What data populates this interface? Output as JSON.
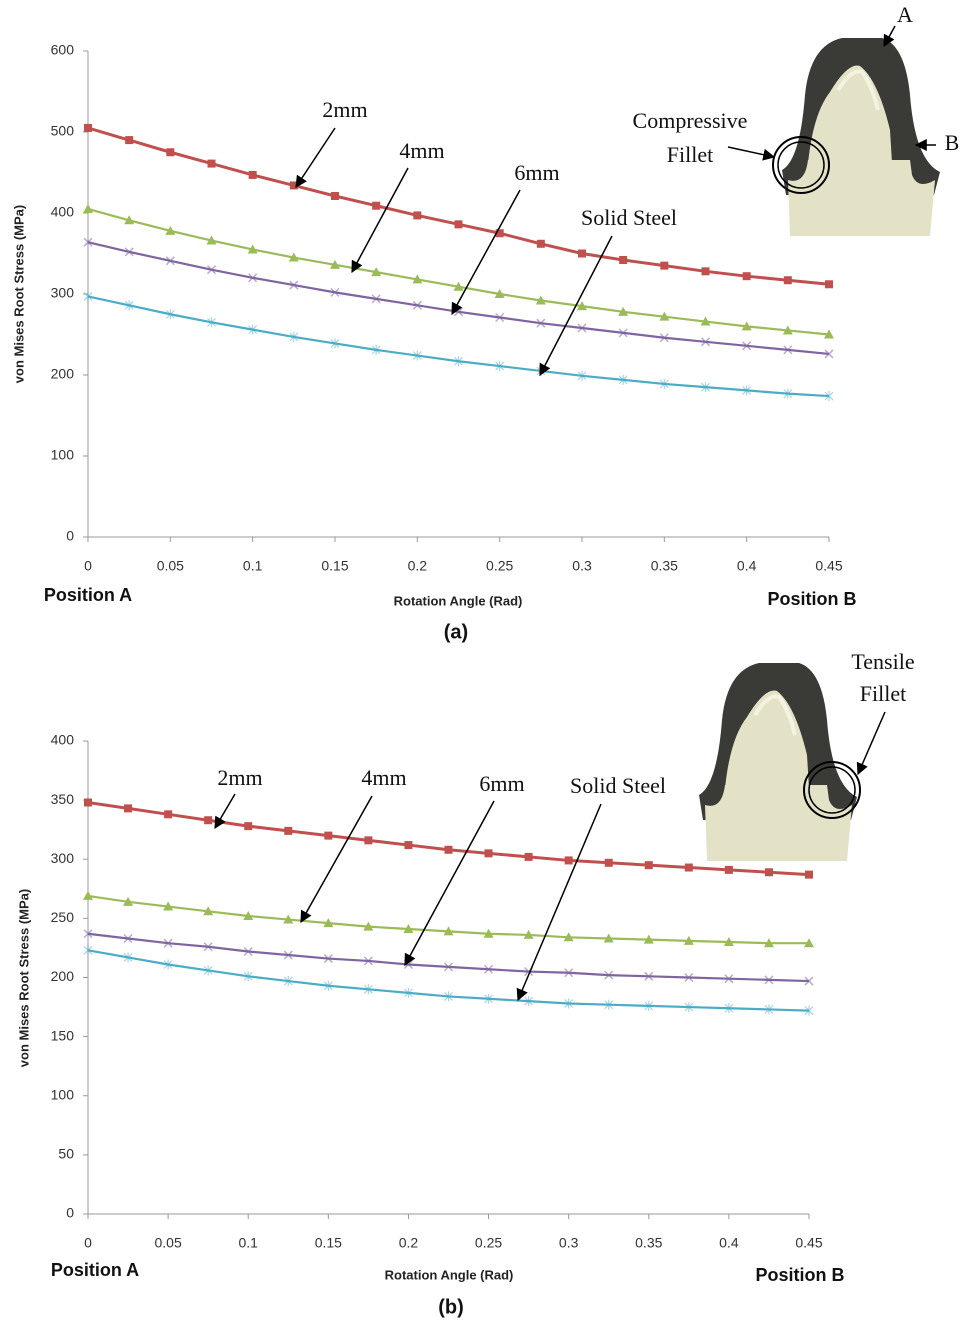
{
  "chart_data": [
    {
      "type": "line",
      "x_label": "Rotation Angle (Rad)",
      "y_label": "von Mises Root Stress (MPa)",
      "x": [
        0,
        0.025,
        0.05,
        0.075,
        0.1,
        0.125,
        0.15,
        0.175,
        0.2,
        0.225,
        0.25,
        0.275,
        0.3,
        0.325,
        0.35,
        0.375,
        0.4,
        0.425,
        0.45
      ],
      "xlim": [
        0,
        0.45
      ],
      "xticks": [
        0,
        0.05,
        0.1,
        0.15,
        0.2,
        0.25,
        0.3,
        0.35,
        0.4,
        0.45
      ],
      "ylim": [
        0,
        600
      ],
      "yticks": [
        0,
        100,
        200,
        300,
        400,
        500,
        600
      ],
      "grid": false,
      "series": [
        {
          "name": "2mm",
          "color": "#c0504d",
          "marker": "square",
          "values": [
            505,
            490,
            475,
            461,
            447,
            434,
            421,
            409,
            397,
            386,
            375,
            362,
            350,
            342,
            335,
            328,
            322,
            317,
            312
          ]
        },
        {
          "name": "4mm",
          "color": "#9bbb59",
          "marker": "triangle",
          "values": [
            405,
            391,
            378,
            366,
            355,
            345,
            336,
            327,
            318,
            309,
            300,
            292,
            285,
            278,
            272,
            266,
            260,
            255,
            250
          ]
        },
        {
          "name": "6mm",
          "color": "#8064a2",
          "marker": "x",
          "values": [
            364,
            352,
            341,
            330,
            320,
            311,
            302,
            294,
            286,
            278,
            271,
            264,
            258,
            252,
            246,
            241,
            236,
            231,
            226
          ]
        },
        {
          "name": "Solid Steel",
          "color": "#4bacc6",
          "marker": "asterisk",
          "values": [
            297,
            286,
            275,
            265,
            256,
            247,
            239,
            231,
            224,
            217,
            211,
            205,
            199,
            194,
            189,
            185,
            181,
            177,
            174
          ]
        }
      ],
      "annotations": [
        "2mm",
        "4mm",
        "6mm",
        "Solid Steel",
        "A",
        "B",
        "Compressive",
        "Fillet",
        "Position A",
        "Position B",
        "(a)"
      ]
    },
    {
      "type": "line",
      "x_label": "Rotation Angle (Rad)",
      "y_label": "von Mises Root Stress (MPa)",
      "x": [
        0,
        0.025,
        0.05,
        0.075,
        0.1,
        0.125,
        0.15,
        0.175,
        0.2,
        0.225,
        0.25,
        0.275,
        0.3,
        0.325,
        0.35,
        0.375,
        0.4,
        0.425,
        0.45
      ],
      "xlim": [
        0,
        0.45
      ],
      "xticks": [
        0,
        0.05,
        0.1,
        0.15,
        0.2,
        0.25,
        0.3,
        0.35,
        0.4,
        0.45
      ],
      "ylim": [
        0,
        400
      ],
      "yticks": [
        0,
        50,
        100,
        150,
        200,
        250,
        300,
        350,
        400
      ],
      "grid": false,
      "series": [
        {
          "name": "2mm",
          "color": "#c0504d",
          "marker": "square",
          "values": [
            348,
            343,
            338,
            333,
            328,
            324,
            320,
            316,
            312,
            308,
            305,
            302,
            299,
            297,
            295,
            293,
            291,
            289,
            287
          ]
        },
        {
          "name": "4mm",
          "color": "#9bbb59",
          "marker": "triangle",
          "values": [
            269,
            264,
            260,
            256,
            252,
            249,
            246,
            243,
            241,
            239,
            237,
            236,
            234,
            233,
            232,
            231,
            230,
            229,
            229
          ]
        },
        {
          "name": "6mm",
          "color": "#8064a2",
          "marker": "x",
          "values": [
            237,
            233,
            229,
            226,
            222,
            219,
            216,
            214,
            211,
            209,
            207,
            205,
            204,
            202,
            201,
            200,
            199,
            198,
            197
          ]
        },
        {
          "name": "Solid Steel",
          "color": "#4bacc6",
          "marker": "asterisk",
          "values": [
            223,
            217,
            211,
            206,
            201,
            197,
            193,
            190,
            187,
            184,
            182,
            180,
            178,
            177,
            176,
            175,
            174,
            173,
            172
          ]
        }
      ],
      "annotations": [
        "2mm",
        "4mm",
        "6mm",
        "Solid Steel",
        "Tensile",
        "Fillet",
        "Position A",
        "Position B",
        "(b)"
      ]
    }
  ]
}
